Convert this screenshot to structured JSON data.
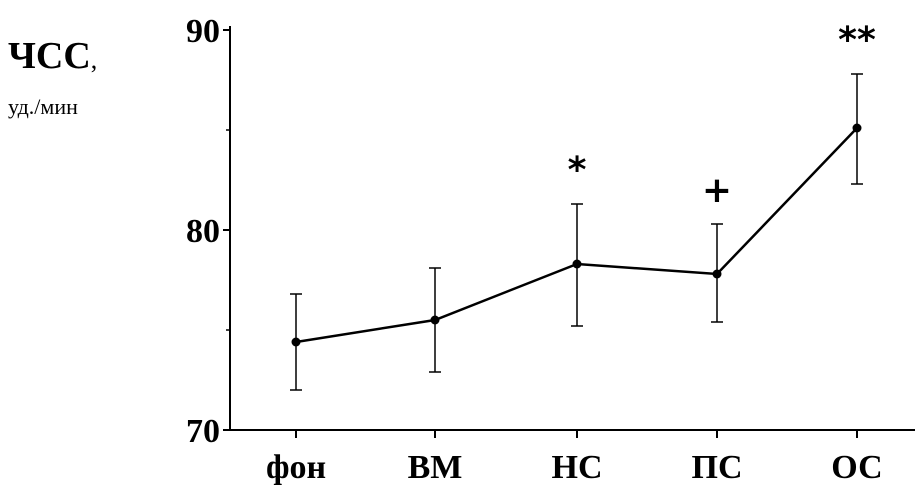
{
  "chart_data": {
    "type": "line",
    "ylabel_main": "ЧСС",
    "ylabel_sep": ",",
    "ylabel_unit": "уд./мин",
    "categories": [
      "фон",
      "ВМ",
      "НС",
      "ПС",
      "ОС"
    ],
    "values": [
      74.4,
      75.5,
      78.3,
      77.8,
      85.1
    ],
    "error_high": [
      76.8,
      78.1,
      81.3,
      80.3,
      87.8
    ],
    "error_low": [
      72.0,
      72.9,
      75.2,
      75.4,
      82.3
    ],
    "annotations": [
      "",
      "",
      "*",
      "+",
      "**"
    ],
    "ylim": [
      70,
      90
    ],
    "yticks": [
      "70",
      "80",
      "90"
    ],
    "line_color": "#000000"
  }
}
